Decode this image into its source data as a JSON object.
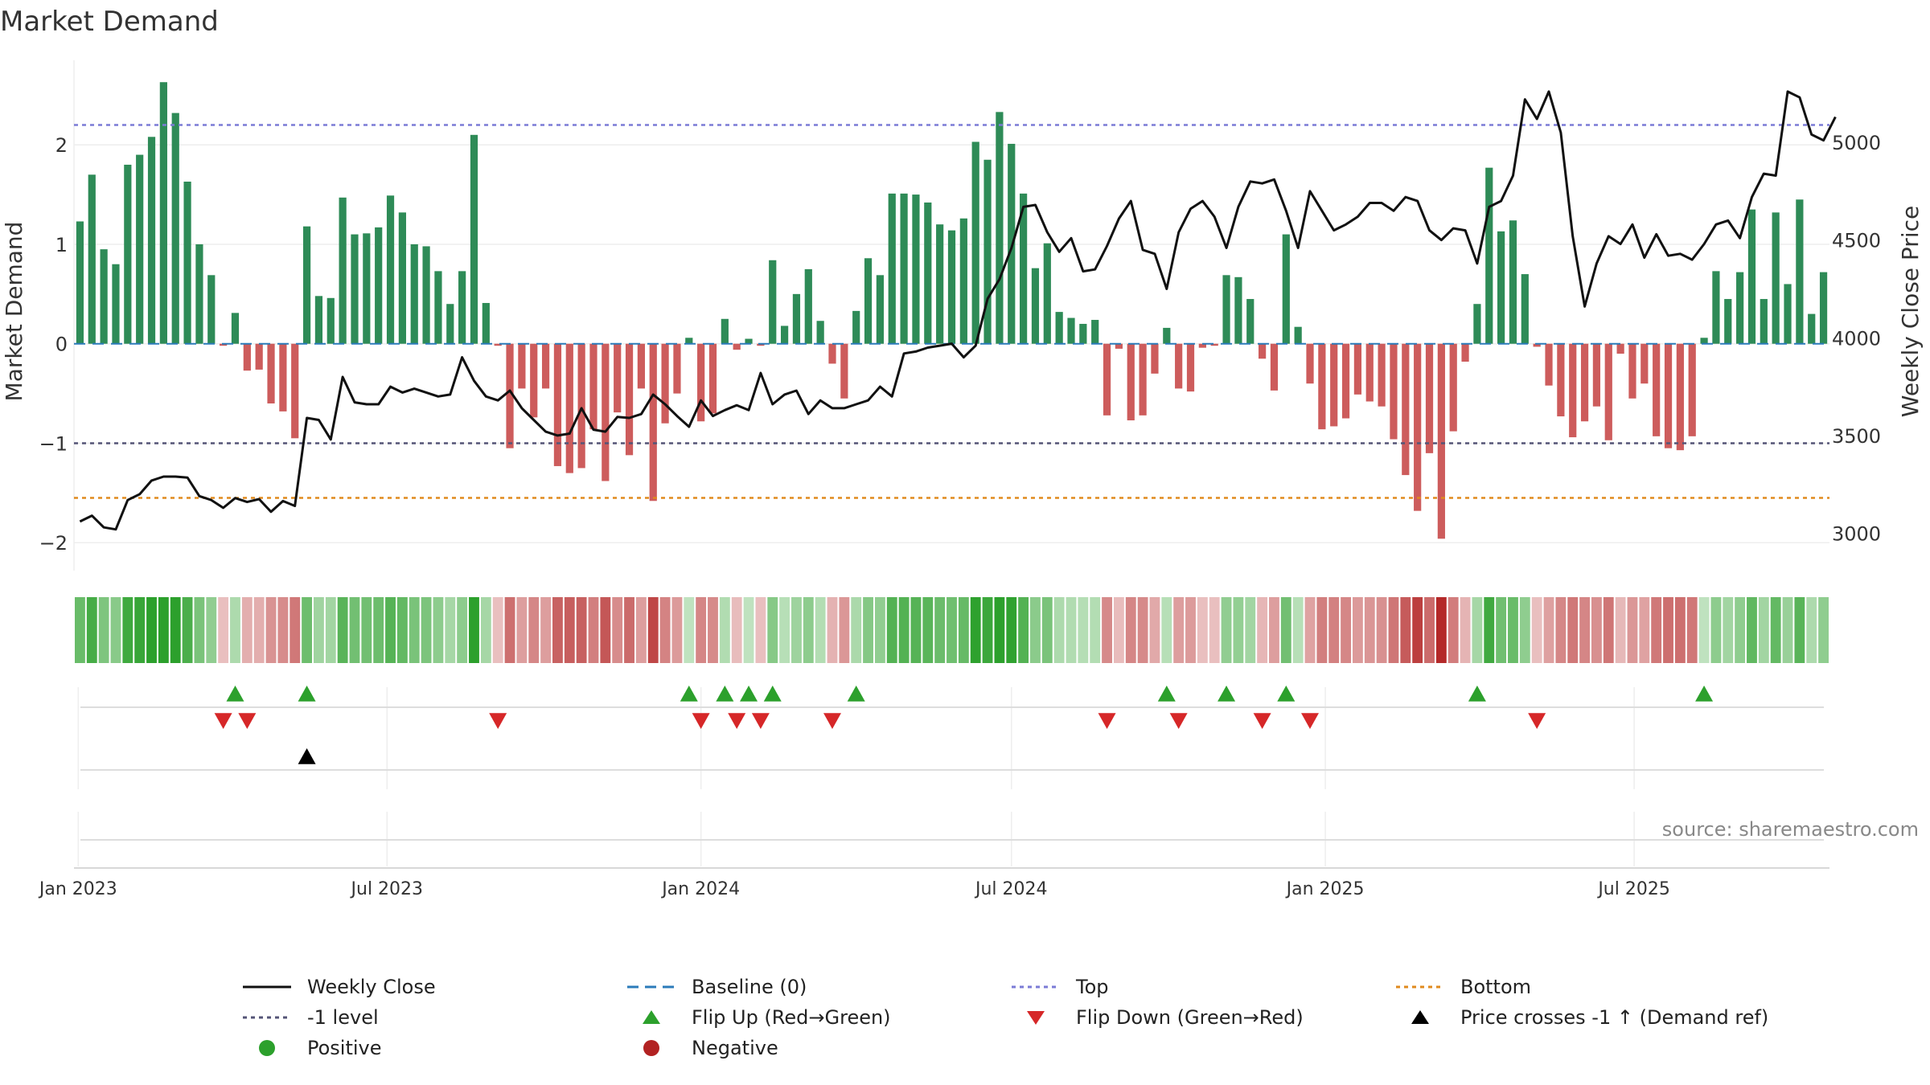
{
  "chart_data": {
    "type": "bar",
    "title": "Market Demand",
    "ylabel": "Market Demand",
    "y2label": "Weekly Close Price",
    "ylim": [
      -2.2,
      2.85
    ],
    "y2lim": [
      2850,
      5420
    ],
    "yticks": [
      -2,
      -1,
      0,
      1,
      2
    ],
    "y2ticks": [
      3000,
      3500,
      4000,
      4500,
      5000
    ],
    "start_date": "2023-01-02",
    "interval_days": 7,
    "xticks": [
      {
        "date": "2023-01-01",
        "label": "Jan 2023"
      },
      {
        "date": "2023-07-01",
        "label": "Jul 2023"
      },
      {
        "date": "2024-01-01",
        "label": "Jan 2024"
      },
      {
        "date": "2024-07-01",
        "label": "Jul 2024"
      },
      {
        "date": "2025-01-01",
        "label": "Jan 2025"
      },
      {
        "date": "2025-07-01",
        "label": "Jul 2025"
      }
    ],
    "reference_lines": {
      "baseline": 0,
      "minus_one": -1,
      "top": 2.2,
      "bottom": -1.55
    },
    "series": [
      {
        "name": "Market Demand",
        "type": "bar",
        "values": [
          1.23,
          1.7,
          0.95,
          0.8,
          1.8,
          1.9,
          2.08,
          2.63,
          2.32,
          1.63,
          1.0,
          0.69,
          -0.02,
          0.31,
          -0.27,
          -0.26,
          -0.6,
          -0.68,
          -0.95,
          1.18,
          0.48,
          0.46,
          1.47,
          1.1,
          1.11,
          1.17,
          1.49,
          1.32,
          1.0,
          0.98,
          0.73,
          0.4,
          0.73,
          2.1,
          0.41,
          -0.02,
          -1.05,
          -0.45,
          -0.74,
          -0.45,
          -1.23,
          -1.3,
          -1.25,
          -0.86,
          -1.38,
          -0.69,
          -1.12,
          -0.45,
          -1.58,
          -0.8,
          -0.5,
          0.06,
          -0.78,
          -0.7,
          0.25,
          -0.06,
          0.05,
          -0.02,
          0.84,
          0.18,
          0.5,
          0.75,
          0.23,
          -0.2,
          -0.55,
          0.33,
          0.86,
          0.69,
          1.51,
          1.51,
          1.5,
          1.42,
          1.2,
          1.14,
          1.26,
          2.03,
          1.85,
          2.33,
          2.01,
          1.51,
          0.76,
          1.01,
          0.32,
          0.26,
          0.2,
          0.24,
          -0.72,
          -0.05,
          -0.77,
          -0.72,
          -0.3,
          0.16,
          -0.45,
          -0.48,
          -0.04,
          -0.02,
          0.69,
          0.67,
          0.45,
          -0.15,
          -0.47,
          1.1,
          0.17,
          -0.4,
          -0.86,
          -0.83,
          -0.75,
          -0.51,
          -0.58,
          -0.63,
          -0.96,
          -1.32,
          -1.68,
          -1.1,
          -1.96,
          -0.88,
          -0.18,
          0.4,
          1.77,
          1.13,
          1.24,
          0.7,
          -0.03,
          -0.42,
          -0.73,
          -0.94,
          -0.78,
          -0.63,
          -0.97,
          -0.1,
          -0.55,
          -0.4,
          -0.93,
          -1.05,
          -1.07,
          -0.93,
          0.06,
          0.73,
          0.45,
          0.72,
          1.35,
          0.45,
          1.32,
          0.6,
          1.45,
          0.3,
          0.72
        ]
      },
      {
        "name": "Weekly Close",
        "type": "line",
        "values": [
          3060,
          3090,
          3030,
          3020,
          3170,
          3200,
          3270,
          3290,
          3290,
          3285,
          3190,
          3170,
          3130,
          3180,
          3160,
          3175,
          3110,
          3165,
          3140,
          3590,
          3580,
          3480,
          3800,
          3670,
          3660,
          3660,
          3750,
          3720,
          3740,
          3720,
          3700,
          3710,
          3900,
          3780,
          3700,
          3680,
          3730,
          3640,
          3580,
          3520,
          3500,
          3510,
          3640,
          3530,
          3520,
          3595,
          3590,
          3610,
          3710,
          3660,
          3600,
          3545,
          3680,
          3600,
          3630,
          3655,
          3630,
          3820,
          3660,
          3710,
          3730,
          3610,
          3680,
          3640,
          3640,
          3660,
          3680,
          3750,
          3700,
          3920,
          3930,
          3950,
          3960,
          3970,
          3900,
          3960,
          4200,
          4300,
          4460,
          4670,
          4680,
          4540,
          4440,
          4510,
          4340,
          4350,
          4470,
          4610,
          4700,
          4450,
          4430,
          4250,
          4540,
          4660,
          4700,
          4620,
          4460,
          4670,
          4800,
          4790,
          4810,
          4650,
          4460,
          4750,
          4650,
          4550,
          4580,
          4620,
          4690,
          4690,
          4650,
          4720,
          4700,
          4550,
          4500,
          4560,
          4550,
          4380,
          4670,
          4700,
          4830,
          5220,
          5120,
          5260,
          5050,
          4520,
          4160,
          4380,
          4520,
          4480,
          4580,
          4410,
          4530,
          4420,
          4430,
          4400,
          4480,
          4580,
          4600,
          4510,
          4720,
          4840,
          4830,
          5260,
          5230,
          5040,
          5010,
          5130
        ]
      }
    ]
  },
  "title": "Market Demand",
  "source": "source: sharemaestro.com",
  "legend": [
    {
      "label": "Weekly Close",
      "symbol": "solid-line",
      "color": "#111111"
    },
    {
      "label": "Baseline (0)",
      "symbol": "dashed-line",
      "color": "#2b7bba"
    },
    {
      "label": "Top",
      "symbol": "dotted-line",
      "color": "#7b7bd6"
    },
    {
      "label": "Bottom",
      "symbol": "dotted-line",
      "color": "#e08a1e"
    },
    {
      "label": "-1 level",
      "symbol": "dotted-line",
      "color": "#555577"
    },
    {
      "label": "Flip Up (Red→Green)",
      "symbol": "triangle-up",
      "color": "#2ca02c"
    },
    {
      "label": "Flip Down (Green→Red)",
      "symbol": "triangle-down",
      "color": "#d62728"
    },
    {
      "label": "Price crosses -1 ↑ (Demand ref)",
      "symbol": "triangle-up",
      "color": "#000000"
    },
    {
      "label": "Positive",
      "symbol": "circle",
      "color": "#2ca02c"
    },
    {
      "label": "Negative",
      "symbol": "circle",
      "color": "#b22222"
    }
  ],
  "colors": {
    "positive_bar": "#2e8b57",
    "negative_bar": "#cd5c5c",
    "price_line": "#111111",
    "baseline": "#2b7bba",
    "top": "#7b7bd6",
    "bottom": "#e08a1e",
    "minus_one": "#555577",
    "flip_up": "#2ca02c",
    "flip_down": "#d62728",
    "cross": "#000000"
  }
}
